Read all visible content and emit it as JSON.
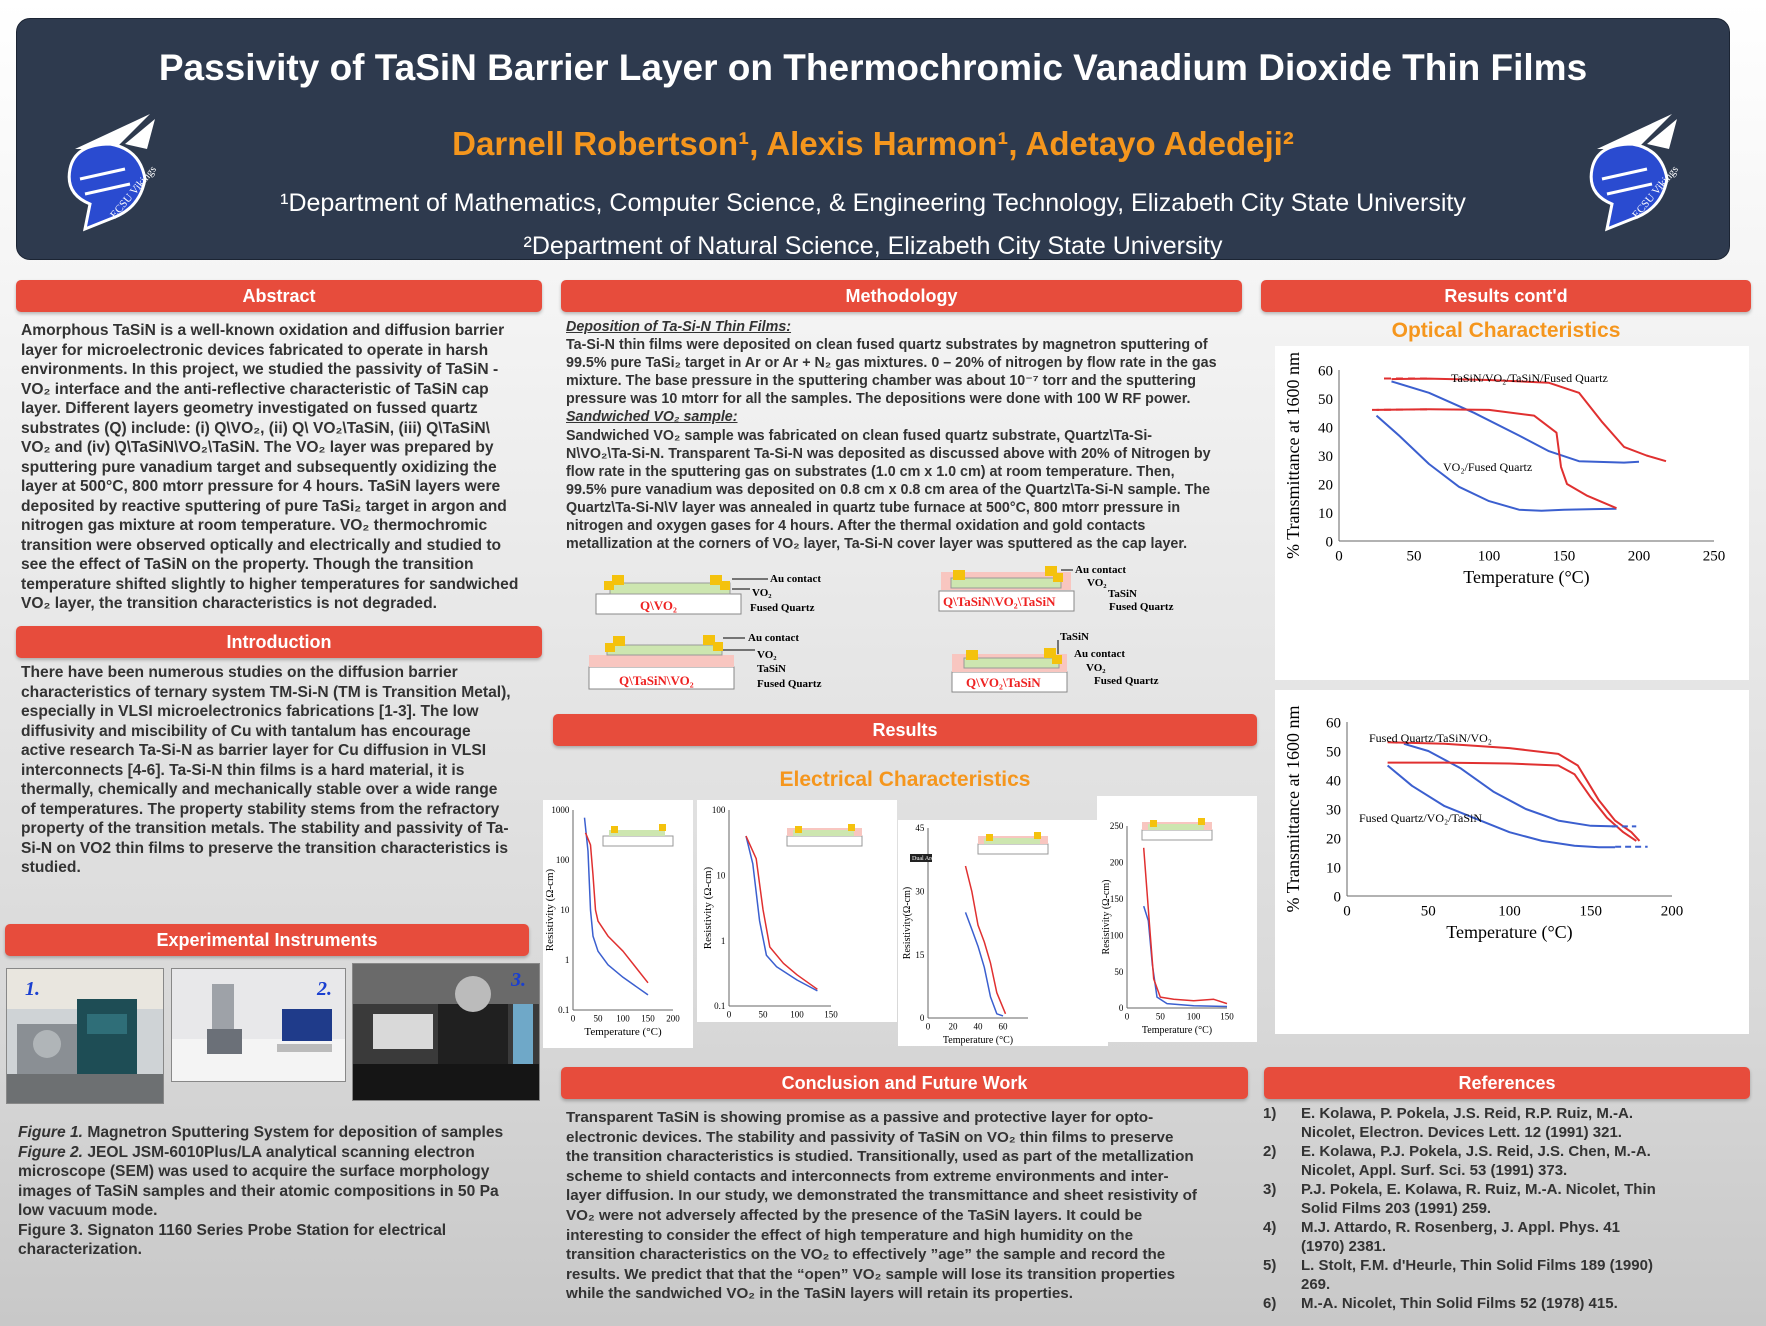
{
  "header": {
    "title": "Passivity of TaSiN Barrier Layer on Thermochromic Vanadium Dioxide Thin Films",
    "authors": "Darnell Robertson¹, Alexis Harmon¹, Adetayo Adedeji²",
    "affil1": "¹Department of Mathematics, Computer Science, & Engineering Technology,  Elizabeth City State University",
    "affil2": "²Department of Natural Science, Elizabeth City State University",
    "logo_text": "ECSU Vikings"
  },
  "sections": {
    "abstract": "Abstract",
    "introduction": "Introduction",
    "instruments": "Experimental Instruments",
    "methodology": "Methodology",
    "results": "Results",
    "conclusion": "Conclusion and Future Work",
    "results_contd": "Results cont'd",
    "references": "References"
  },
  "abstract_lines": [
    "Amorphous TaSiN is a well-known oxidation and diffusion barrier",
    "layer for microelectronic devices fabricated to operate in harsh",
    "environments. In this project, we studied the passivity of TaSiN -",
    "VO₂ interface and the anti-reflective characteristic of TaSiN cap",
    "layer.  Different layers geometry investigated on fussed quartz",
    "substrates (Q) include: (i) Q\\VO₂, (ii) Q\\ VO₂\\TaSiN, (iii) Q\\TaSiN\\",
    "VO₂ and (iv) Q\\TaSiN\\VO₂\\TaSiN. The VO₂ layer was prepared by",
    "sputtering pure vanadium target and subsequently oxidizing the",
    "layer at 500°C, 800 mtorr pressure for 4 hours. TaSiN layers were",
    "deposited by reactive sputtering of pure TaSi₂ target in argon and",
    "nitrogen gas mixture at room temperature. VO₂ thermochromic",
    "transition were observed optically and electrically and studied to",
    "see the effect of TaSiN on the property. Though the transition",
    "temperature shifted slightly to higher temperatures for sandwiched",
    "VO₂ layer, the transition characteristics is not degraded."
  ],
  "introduction_lines": [
    "There have been numerous studies on the diffusion barrier",
    "characteristics of ternary system TM-Si-N (TM is Transition Metal),",
    "especially in VLSI microelectronics fabrications [1-3]. The low",
    "diffusivity and miscibility of Cu with tantalum has encourage",
    "active research Ta-Si-N as barrier layer for Cu diffusion in VLSI",
    "interconnects [4-6]. Ta-Si-N thin films is a hard material, it is",
    "thermally, chemically and mechanically stable over a wide range",
    "of temperatures. The property stability stems from the refractory",
    "property of the transition metals. The stability and passivity of Ta-",
    "Si-N on VO2 thin films to preserve the transition characteristics is",
    "studied."
  ],
  "instruments": {
    "photo_labels": [
      "1.",
      "2.",
      "3."
    ],
    "caption_lines": [
      {
        "italic": "Figure 1.",
        "text": " Magnetron Sputtering System for deposition of samples"
      },
      {
        "italic": "Figure 2.",
        "text": " JEOL JSM-6010Plus/LA analytical scanning electron"
      },
      {
        "italic": "",
        "text": "microscope (SEM) was used to acquire the surface morphology"
      },
      {
        "italic": "",
        "text": "images of TaSiN samples and their atomic compositions in 50 Pa"
      },
      {
        "italic": "",
        "text": "low vacuum mode."
      },
      {
        "italic": "",
        "text": "Figure 3. Signaton 1160 Series Probe Station for electrical"
      },
      {
        "italic": "",
        "text": "characterization."
      }
    ]
  },
  "methodology": {
    "sub1": "Deposition of Ta-Si-N Thin Films:",
    "dep_lines": [
      "Ta-Si-N thin films were deposited on clean fused quartz substrates by magnetron sputtering of",
      "99.5% pure TaSi₂ target in Ar or Ar + N₂ gas mixtures. 0 – 20% of nitrogen by flow rate in the gas",
      "mixture. The base pressure in the sputtering chamber was about 10⁻⁷ torr and the sputtering",
      "pressure was 10 mtorr for all the samples. The depositions were done with 100 W RF power."
    ],
    "sub2": "Sandwiched VO₂ sample:",
    "sand_lines": [
      "Sandwiched VO₂ sample was fabricated on clean fused quartz substrate, Quartz\\Ta-Si-",
      "N\\VO₂\\Ta-Si-N. Transparent Ta-Si-N was deposited as discussed above with 20% of Nitrogen by",
      "flow rate in the sputtering gas on substrates (1.0 cm x 1.0 cm) at room temperature. Then,",
      "99.5% pure vanadium was deposited on 0.8 cm x 0.8 cm area of the Quartz\\Ta-Si-N sample. The",
      "Quartz\\Ta-Si-N\\V layer was annealed in quartz tube furnace at 500°C, 800 mtorr pressure in",
      "nitrogen and oxygen gases for 4 hours. After the thermal oxidation and gold contacts",
      "metallization at the corners of VO₂ layer, Ta-Si-N cover layer was sputtered as the cap layer."
    ],
    "diagrams": [
      {
        "name": "Q\\VO₂",
        "labels": [
          "Au contact",
          "VO₂",
          "Fused Quartz"
        ]
      },
      {
        "name": "Q\\TaSiN\\VO₂\\TaSiN",
        "labels": [
          "Au contact",
          "VO₂",
          "TaSiN",
          "Fused Quartz"
        ]
      },
      {
        "name": "Q\\TaSiN\\VO₂",
        "labels": [
          "Au contact",
          "VO₂",
          "TaSiN",
          "Fused Quartz"
        ]
      },
      {
        "name": "Q\\VO₂\\TaSiN",
        "labels": [
          "TaSiN",
          "Au contact",
          "VO₂",
          "Fused Quartz"
        ]
      }
    ]
  },
  "results": {
    "electrical_title": "Electrical Characteristics",
    "optical_title": "Optical Characteristics"
  },
  "conclusion_lines": [
    "Transparent TaSiN is showing promise as a passive and protective layer for opto-",
    "electronic devices. The stability and passivity of TaSiN on VO₂ thin films to preserve",
    "the transition characteristics is studied. Transitionally, used as part of the metallization",
    "scheme to shield contacts and interconnects from extreme environments and inter-",
    "layer diffusion. In our study, we demonstrated the transmittance and sheet resistivity of",
    "VO₂ were not adversely affected by the presence of the TaSiN layers. It could be",
    "interesting to consider the effect of high temperature and high humidity on the",
    "transition characteristics on the VO₂ to effectively ”age” the sample and record the",
    "results. We predict that that the “open” VO₂ sample will lose its transition properties",
    "while the sandwiched VO₂  in the TaSiN layers will retain its properties."
  ],
  "references": [
    {
      "num": "1)",
      "text": "E. Kolawa, P. Pokela, J.S. Reid, R.P. Ruiz, M.-A. Nicolet, Electron. Devices Lett. 12 (1991) 321."
    },
    {
      "num": "2)",
      "text": "E. Kolawa, P.J. Pokela, J.S. Reid, J.S. Chen, M.-A. Nicolet, Appl. Surf. Sci. 53 (1991) 373."
    },
    {
      "num": "3)",
      "text": "P.J. Pokela, E. Kolawa, R. Ruiz, M.-A. Nicolet, Thin Solid Films 203 (1991) 259."
    },
    {
      "num": "4)",
      "text": "M.J. Attardo, R. Rosenberg, J. Appl. Phys. 41 (1970) 2381."
    },
    {
      "num": "5)",
      "text": "L. Stolt, F.M. d'Heurle, Thin Solid Films 189 (1990) 269."
    },
    {
      "num": "6)",
      "text": "M.-A. Nicolet, Thin Solid Films 52 (1978) 415."
    }
  ],
  "chart_data": [
    {
      "type": "line",
      "id": "optical-top",
      "xlabel": "Temperature (°C)",
      "ylabel": "% Transmittance at 1600 nm",
      "xlim": [
        0,
        250
      ],
      "ylim": [
        0,
        60
      ],
      "x_ticks": [
        0,
        50,
        100,
        150,
        200,
        250
      ],
      "y_ticks": [
        0,
        10,
        20,
        30,
        40,
        50,
        60
      ],
      "annotations": [
        "TaSiN/VO₂/TaSiN/Fused Quartz",
        "VO₂/Fused Quartz"
      ],
      "series": [
        {
          "name": "TaSiN/VO₂/TaSiN/Fused Quartz",
          "color": "#3b5fcf",
          "x": [
            35,
            60,
            90,
            120,
            140,
            160,
            190,
            200
          ],
          "y": [
            56,
            52,
            45,
            37,
            31.5,
            28,
            27.5,
            27.8
          ]
        },
        {
          "name": "TaSiN/VO₂/TaSiN/Fused Quartz",
          "color": "#e03030",
          "x": [
            35,
            60,
            100,
            140,
            160,
            175,
            190,
            205,
            218
          ],
          "y": [
            56.8,
            57,
            56.5,
            55.5,
            52,
            42,
            33,
            30,
            28
          ]
        },
        {
          "name": "VO₂/Fused Quartz",
          "color": "#3b5fcf",
          "x": [
            25,
            40,
            60,
            80,
            100,
            120,
            135,
            150,
            170,
            185
          ],
          "y": [
            44,
            37,
            27,
            19,
            14,
            11,
            10.6,
            11,
            11.2,
            11.3
          ]
        },
        {
          "name": "VO₂/Fused Quartz",
          "color": "#e03030",
          "x": [
            25,
            60,
            100,
            130,
            145,
            148,
            152,
            165,
            185
          ],
          "y": [
            46,
            46.2,
            46,
            44,
            38,
            26,
            20,
            16,
            11.5
          ]
        }
      ]
    },
    {
      "type": "line",
      "id": "optical-bottom",
      "xlabel": "Temperature (°C)",
      "ylabel": "% Transmittance at 1600 nm",
      "xlim": [
        0,
        200
      ],
      "ylim": [
        0,
        60
      ],
      "x_ticks": [
        0,
        50,
        100,
        150,
        200
      ],
      "y_ticks": [
        0,
        10,
        20,
        30,
        40,
        50,
        60
      ],
      "annotations": [
        "Fused Quartz/TaSiN/VO₂",
        "Fused Quartz/VO₂/TaSiN"
      ],
      "series": [
        {
          "name": "Fused Quartz/TaSiN/VO₂",
          "color": "#3b5fcf",
          "x": [
            35,
            50,
            70,
            90,
            110,
            130,
            150,
            165
          ],
          "y": [
            52.5,
            50,
            44,
            36,
            30,
            26,
            24.2,
            24
          ]
        },
        {
          "name": "Fused Quartz/TaSiN/VO₂",
          "color": "#e03030",
          "x": [
            25,
            60,
            100,
            130,
            142,
            155,
            165,
            175,
            180
          ],
          "y": [
            53,
            52.5,
            51,
            49,
            45,
            33,
            26,
            22,
            19
          ]
        },
        {
          "name": "Fused Quartz/VO₂/TaSiN",
          "color": "#3b5fcf",
          "x": [
            25,
            40,
            60,
            80,
            100,
            120,
            140,
            155,
            165
          ],
          "y": [
            45,
            38,
            31,
            26.5,
            22,
            19,
            17.3,
            16.8,
            16.8
          ]
        },
        {
          "name": "Fused Quartz/VO₂/TaSiN",
          "color": "#e03030",
          "x": [
            25,
            60,
            100,
            130,
            140,
            150,
            160,
            170,
            178
          ],
          "y": [
            46,
            46,
            45.7,
            45,
            42,
            34,
            27,
            22,
            19
          ]
        }
      ]
    },
    {
      "type": "line",
      "id": "electrical-1",
      "scale": "log",
      "xlabel": "Temperature (°C)",
      "ylabel": "Resistivity (Ω-cm)",
      "xlim": [
        0,
        200
      ],
      "ylim": [
        0.1,
        1000
      ],
      "x_ticks": [
        0,
        50,
        100,
        150,
        200
      ],
      "y_ticks": [
        0.1,
        1,
        10,
        100,
        1000
      ],
      "series": [
        {
          "color": "#3b5fcf",
          "x": [
            23,
            30,
            35,
            40,
            50,
            70,
            100,
            150
          ],
          "y": [
            700,
            150,
            10,
            3,
            1.5,
            0.8,
            0.45,
            0.2
          ]
        },
        {
          "color": "#e03030",
          "x": [
            25,
            35,
            40,
            45,
            50,
            70,
            100,
            150
          ],
          "y": [
            350,
            200,
            50,
            10,
            6,
            3,
            1.5,
            0.35
          ]
        }
      ]
    },
    {
      "type": "line",
      "id": "electrical-2",
      "scale": "log",
      "xlabel": "Temperature (°C)",
      "ylabel": "Resistivity (Ω-cm)",
      "xlim": [
        0,
        150
      ],
      "ylim": [
        0.1,
        100
      ],
      "x_ticks": [
        0,
        50,
        100,
        150
      ],
      "y_ticks": [
        0.1,
        1,
        10,
        100
      ],
      "series": [
        {
          "color": "#3b5fcf",
          "x": [
            25,
            35,
            45,
            55,
            70,
            100,
            130
          ],
          "y": [
            40,
            15,
            2,
            0.6,
            0.4,
            0.25,
            0.17
          ]
        },
        {
          "color": "#e03030",
          "x": [
            25,
            40,
            50,
            60,
            80,
            100,
            130
          ],
          "y": [
            40,
            18,
            3,
            0.8,
            0.45,
            0.3,
            0.18
          ]
        }
      ]
    },
    {
      "type": "line",
      "id": "electrical-3",
      "xlabel": "Temperature (°C)",
      "ylabel": "Resistivity(Ω-cm)",
      "xlim": [
        0,
        80
      ],
      "ylim": [
        0,
        45
      ],
      "x_ticks": [
        0,
        20,
        40,
        60
      ],
      "y_ticks": [
        0,
        15,
        30,
        45
      ],
      "annotations": [
        "Dual Area"
      ],
      "series": [
        {
          "color": "#3b5fcf",
          "x": [
            30,
            35,
            40,
            45,
            50,
            55,
            60
          ],
          "y": [
            25,
            21,
            17,
            12,
            5,
            1,
            0.5
          ]
        },
        {
          "color": "#e03030",
          "x": [
            30,
            35,
            40,
            45,
            50,
            55,
            62
          ],
          "y": [
            36,
            30,
            22,
            18,
            13,
            6,
            1
          ]
        }
      ]
    },
    {
      "type": "line",
      "id": "electrical-4",
      "xlabel": "Temperature (°C)",
      "ylabel": "Resistivity (Ω-cm)",
      "xlim": [
        0,
        150
      ],
      "ylim": [
        0,
        250
      ],
      "x_ticks": [
        0,
        50,
        100,
        150
      ],
      "y_ticks": [
        0,
        50,
        100,
        150,
        200,
        250
      ],
      "series": [
        {
          "color": "#3b5fcf",
          "x": [
            25,
            32,
            38,
            45,
            60,
            100,
            150
          ],
          "y": [
            140,
            120,
            60,
            15,
            6,
            3,
            2
          ]
        },
        {
          "color": "#e03030",
          "x": [
            25,
            30,
            35,
            40,
            50,
            70,
            100,
            130,
            150
          ],
          "y": [
            220,
            160,
            100,
            40,
            15,
            12,
            10,
            12,
            6
          ]
        }
      ]
    }
  ]
}
